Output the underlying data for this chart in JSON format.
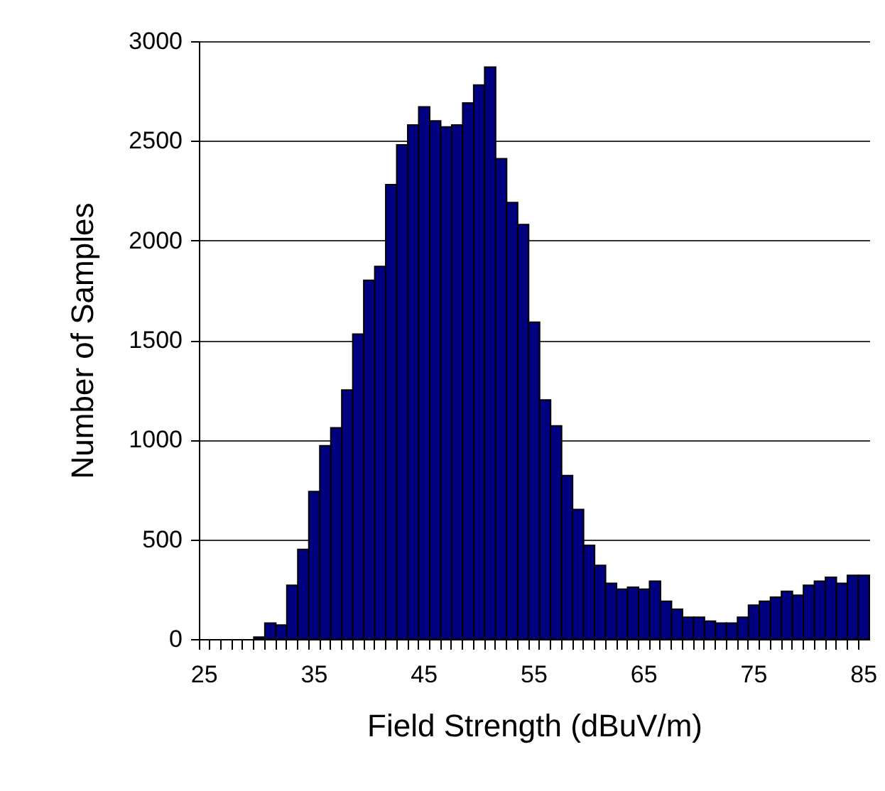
{
  "chart_data": {
    "type": "bar",
    "xlabel": "Field Strength (dBuV/m)",
    "ylabel": "Number of Samples",
    "categories": [
      "25",
      null,
      null,
      null,
      null,
      null,
      null,
      null,
      null,
      null,
      "35",
      null,
      null,
      null,
      null,
      null,
      null,
      null,
      null,
      null,
      "45",
      null,
      null,
      null,
      null,
      null,
      null,
      null,
      null,
      null,
      "55",
      null,
      null,
      null,
      null,
      null,
      null,
      null,
      null,
      null,
      "65",
      null,
      null,
      null,
      null,
      null,
      null,
      null,
      null,
      null,
      "75",
      null,
      null,
      null,
      null,
      null,
      null,
      null,
      null,
      null,
      "85"
    ],
    "values": [
      0,
      0,
      0,
      0,
      0,
      10,
      80,
      70,
      270,
      450,
      740,
      970,
      1060,
      1250,
      1530,
      1800,
      1870,
      2280,
      2480,
      2580,
      2670,
      2600,
      2570,
      2580,
      2690,
      2780,
      2870,
      2410,
      2190,
      2080,
      1590,
      1200,
      1070,
      820,
      650,
      470,
      370,
      280,
      250,
      260,
      250,
      290,
      190,
      150,
      110,
      110,
      90,
      80,
      80,
      110,
      170,
      190,
      210,
      240,
      220,
      270,
      290,
      310,
      280,
      320,
      320
    ],
    "color": "#000080",
    "ylim": [
      0,
      3000
    ],
    "yticks": [
      0,
      500,
      1000,
      1500,
      2000,
      2500,
      3000
    ],
    "grid": "y"
  }
}
